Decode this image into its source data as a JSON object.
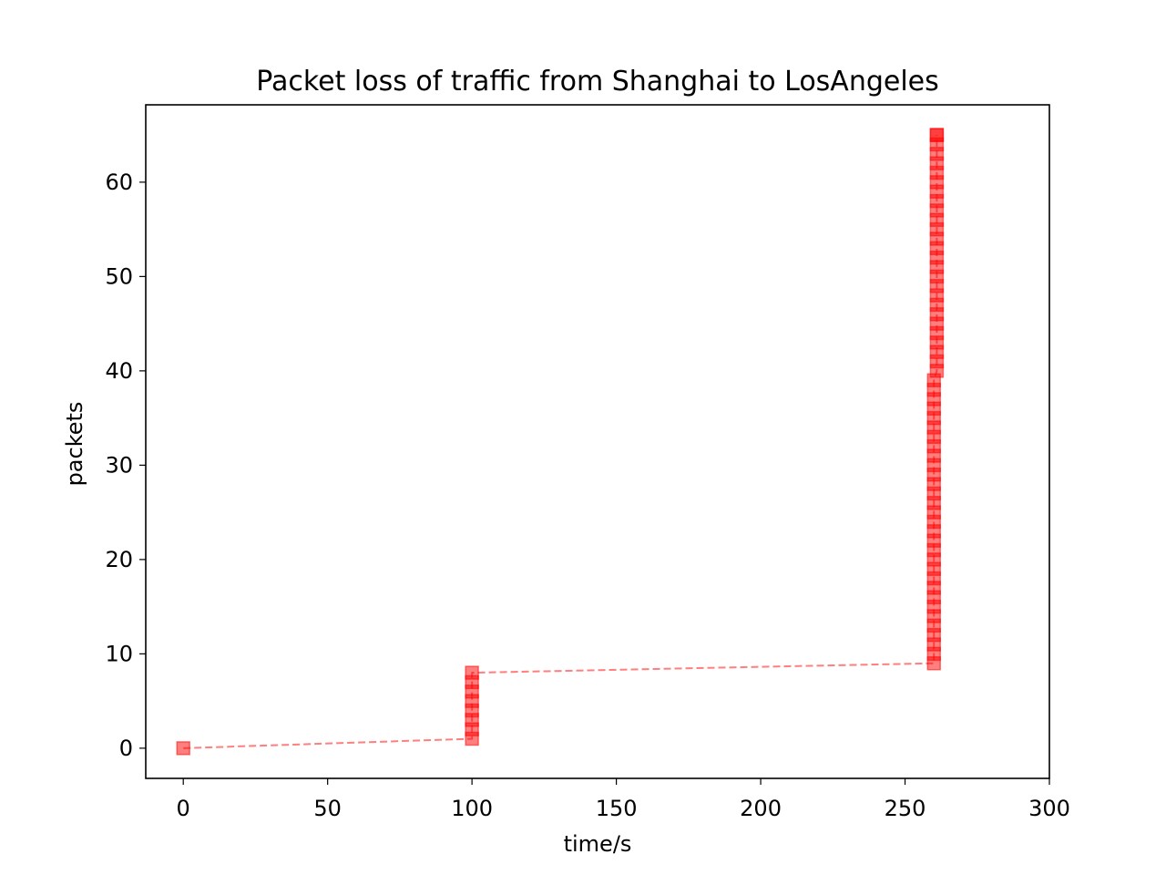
{
  "chart_data": {
    "type": "line",
    "title": "Packet loss of traffic from Shanghai to LosAngeles",
    "xlabel": "time/s",
    "ylabel": "packets",
    "xlim": [
      -13,
      300
    ],
    "ylim": [
      -3.2,
      68.2
    ],
    "xticks": [
      0,
      50,
      100,
      150,
      200,
      250,
      300
    ],
    "yticks": [
      0,
      10,
      20,
      30,
      40,
      50,
      60
    ],
    "grid": false,
    "series": [
      {
        "color": "#ff0000",
        "alpha": 0.5,
        "linestyle": "dashed",
        "marker": "square",
        "x": [
          0,
          100,
          100,
          100,
          100,
          100,
          100,
          100,
          100,
          260,
          260,
          260,
          260,
          260,
          260,
          260,
          260,
          260,
          260,
          260,
          260,
          260,
          260,
          260,
          260,
          260,
          260,
          260,
          260,
          260,
          260,
          260,
          260,
          260,
          260,
          260,
          260,
          260,
          260,
          260,
          261,
          261,
          261,
          261,
          261,
          261,
          261,
          261,
          261,
          261,
          261,
          261,
          261,
          261,
          261,
          261,
          261,
          261,
          261,
          261,
          261,
          261,
          261,
          261,
          261,
          261,
          261
        ],
        "y": [
          0,
          1,
          2,
          3,
          4,
          5,
          6,
          7,
          8,
          9,
          10,
          11,
          12,
          13,
          14,
          15,
          16,
          17,
          18,
          19,
          20,
          21,
          22,
          23,
          24,
          25,
          26,
          27,
          28,
          29,
          30,
          31,
          32,
          33,
          34,
          35,
          36,
          37,
          38,
          39,
          40,
          41,
          42,
          43,
          44,
          45,
          46,
          47,
          48,
          49,
          50,
          51,
          52,
          53,
          54,
          55,
          56,
          57,
          58,
          59,
          60,
          61,
          62,
          63,
          64,
          65,
          65
        ]
      }
    ]
  }
}
